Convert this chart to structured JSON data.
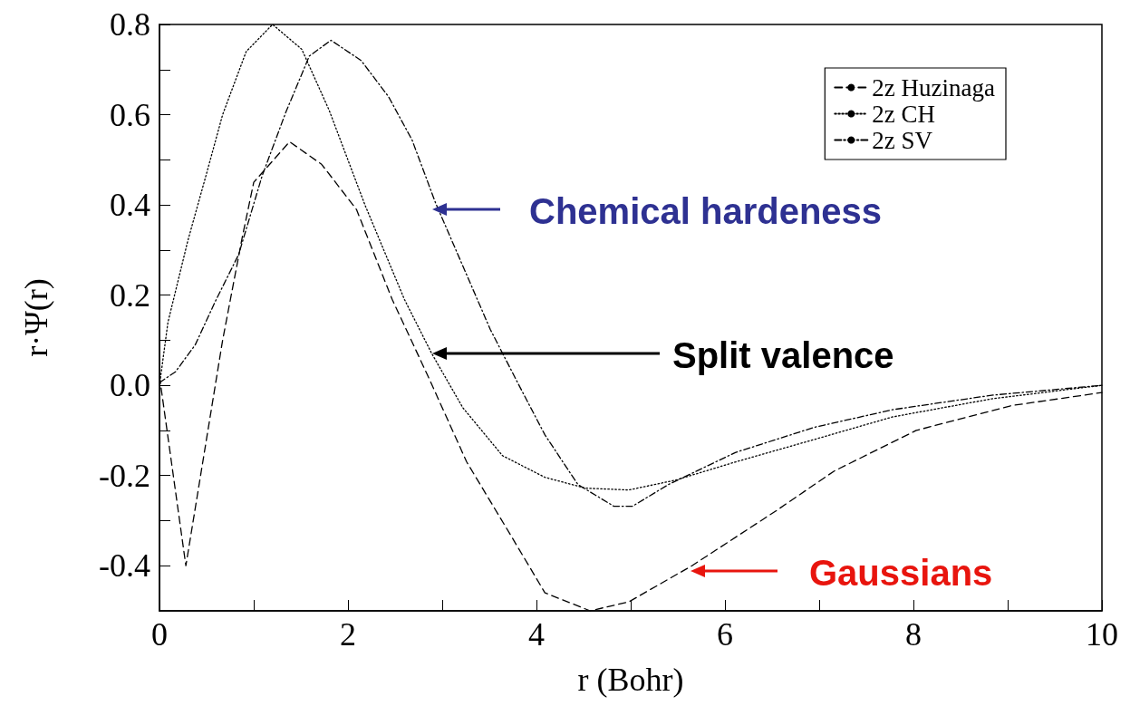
{
  "chart_data": {
    "type": "line",
    "xlabel": "r (Bohr)",
    "ylabel": "r·Ψ(r)",
    "xlim": [
      0,
      10
    ],
    "xticks": [
      0,
      {
        "value": 1,
        "label": null
      },
      2,
      {
        "value": 3,
        "label": null
      },
      4,
      {
        "value": 5,
        "label": null
      },
      6,
      {
        "value": 7,
        "label": null
      },
      8,
      {
        "value": 9,
        "label": null
      },
      10
    ],
    "ylim": [
      -0.5,
      0.8
    ],
    "yticks": [
      {
        "value": -0.4,
        "label": "-0.4"
      },
      {
        "value": -0.3,
        "label": null
      },
      {
        "value": -0.2,
        "label": "-0.2"
      },
      {
        "value": -0.1,
        "label": null
      },
      {
        "value": 0,
        "label": "0.0"
      },
      {
        "value": 0.1,
        "label": null
      },
      {
        "value": 0.2,
        "label": "0.2"
      },
      {
        "value": 0.3,
        "label": null
      },
      {
        "value": 0.4,
        "label": "0.4"
      },
      {
        "value": 0.5,
        "label": null
      },
      {
        "value": 0.6,
        "label": "0.6"
      },
      {
        "value": 0.7,
        "label": null
      },
      {
        "value": 0.8,
        "label": "0.8"
      }
    ],
    "legend": "top right",
    "grid": false,
    "marker": "none",
    "series": [
      {
        "name": "2z Huzinaga",
        "color": "#000000",
        "line_style": "dashed",
        "x": [
          0,
          0.28,
          0.67,
          0.88,
          1.0,
          1.38,
          1.72,
          2.09,
          2.47,
          2.85,
          3.26,
          3.72,
          4.09,
          4.57,
          4.98,
          5.65,
          6.53,
          7.16,
          8.03,
          9.04,
          10
        ],
        "values": [
          0.02,
          -0.4,
          0.1,
          0.33,
          0.45,
          0.54,
          0.49,
          0.39,
          0.19,
          0.02,
          -0.17,
          -0.33,
          -0.46,
          -0.5,
          -0.48,
          -0.4,
          -0.28,
          -0.19,
          -0.1,
          -0.045,
          -0.016
        ]
      },
      {
        "name": "2z CH",
        "color": "#000000",
        "line_style": "dotted",
        "x": [
          0,
          0.09,
          0.3,
          0.5,
          0.67,
          0.92,
          1.2,
          1.51,
          1.8,
          2.18,
          2.6,
          2.89,
          3.22,
          3.64,
          4.09,
          4.52,
          4.98,
          5.48,
          6.11,
          6.95,
          7.78,
          8.83,
          10
        ],
        "values": [
          0.0,
          0.14,
          0.32,
          0.47,
          0.6,
          0.74,
          0.8,
          0.745,
          0.61,
          0.4,
          0.19,
          0.07,
          -0.05,
          -0.156,
          -0.204,
          -0.228,
          -0.232,
          -0.21,
          -0.17,
          -0.12,
          -0.07,
          -0.03,
          0.0
        ]
      },
      {
        "name": "2z SV",
        "color": "#000000",
        "line_style": "dashdot",
        "x": [
          0,
          0.17,
          0.38,
          0.59,
          0.84,
          1.09,
          1.34,
          1.59,
          1.82,
          2.14,
          2.43,
          2.68,
          2.93,
          3.22,
          3.51,
          3.81,
          4.09,
          4.44,
          4.82,
          5.02,
          5.4,
          6.11,
          6.95,
          7.78,
          8.83,
          10
        ],
        "values": [
          0.006,
          0.03,
          0.09,
          0.185,
          0.29,
          0.465,
          0.605,
          0.73,
          0.765,
          0.72,
          0.64,
          0.544,
          0.404,
          0.264,
          0.124,
          0.002,
          -0.11,
          -0.22,
          -0.268,
          -0.268,
          -0.22,
          -0.149,
          -0.093,
          -0.054,
          -0.022,
          0.0
        ]
      }
    ],
    "annotations": [
      "Chemical hardeness",
      "Split valence",
      "Gaussians"
    ]
  }
}
